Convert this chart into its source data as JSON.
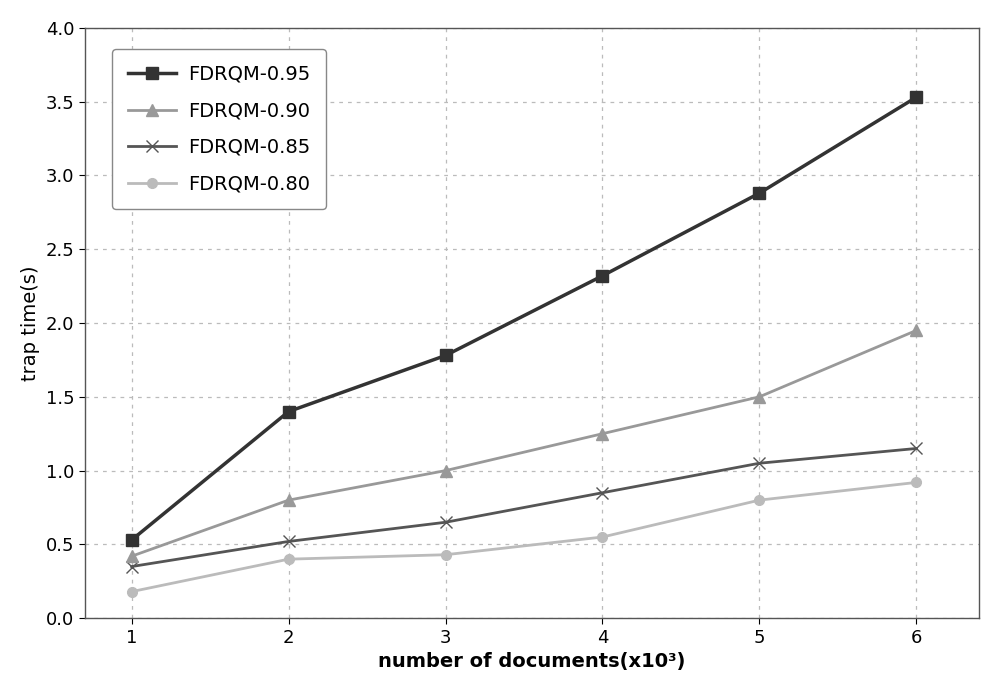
{
  "x": [
    1,
    2,
    3,
    4,
    5,
    6
  ],
  "series": [
    {
      "label": "FDRQM-0.95",
      "values": [
        0.53,
        1.4,
        1.78,
        2.32,
        2.88,
        3.53
      ],
      "color": "#333333",
      "marker": "s",
      "linewidth": 2.5,
      "markersize": 8,
      "zorder": 5
    },
    {
      "label": "FDRQM-0.90",
      "values": [
        0.42,
        0.8,
        1.0,
        1.25,
        1.5,
        1.95
      ],
      "color": "#999999",
      "marker": "^",
      "linewidth": 2.0,
      "markersize": 8,
      "zorder": 4
    },
    {
      "label": "FDRQM-0.85",
      "values": [
        0.35,
        0.52,
        0.65,
        0.85,
        1.05,
        1.15
      ],
      "color": "#555555",
      "marker": "x",
      "linewidth": 2.0,
      "markersize": 9,
      "zorder": 3
    },
    {
      "label": "FDRQM-0.80",
      "values": [
        0.18,
        0.4,
        0.43,
        0.55,
        0.8,
        0.92
      ],
      "color": "#bbbbbb",
      "marker": "o",
      "linewidth": 2.0,
      "markersize": 7,
      "zorder": 2
    }
  ],
  "xlabel": "number of documents(x10³)",
  "ylabel": "trap time(s)",
  "xlim": [
    0.7,
    6.4
  ],
  "ylim": [
    0,
    4.0
  ],
  "yticks": [
    0,
    0.5,
    1.0,
    1.5,
    2.0,
    2.5,
    3.0,
    3.5,
    4.0
  ],
  "xticks": [
    1,
    2,
    3,
    4,
    5,
    6
  ],
  "grid_color": "#bbbbbb",
  "legend_loc": "upper left",
  "background_color": "#ffffff",
  "label_fontsize": 14,
  "tick_fontsize": 13,
  "legend_fontsize": 14
}
